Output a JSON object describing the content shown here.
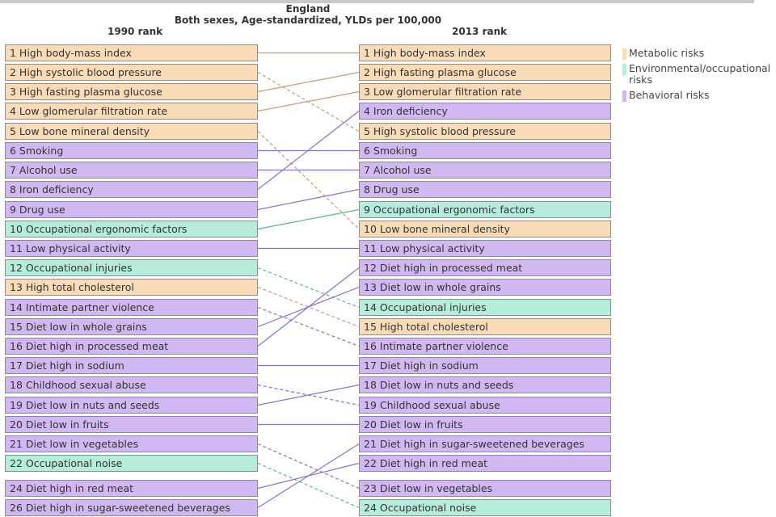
{
  "chart_data": {
    "type": "slopegraph",
    "title_line1": "England",
    "title_line2": "Both sexes, Age-standardized, YLDs per 100,000",
    "left_header": "1990 rank",
    "right_header": "2013 rank",
    "legend": [
      {
        "id": "metabolic",
        "label": "Metabolic risks",
        "color": "#fadbb8"
      },
      {
        "id": "environmental",
        "label": "Environmental/occupational risks",
        "color": "#b5ecdc"
      },
      {
        "id": "behavioral",
        "label": "Behavioral risks",
        "color": "#d2b8f3"
      }
    ],
    "rank_1990": [
      {
        "rank": 1,
        "label": "1 High body-mass index",
        "category": "metabolic"
      },
      {
        "rank": 2,
        "label": "2 High systolic blood pressure",
        "category": "metabolic"
      },
      {
        "rank": 3,
        "label": "3 High fasting plasma glucose",
        "category": "metabolic"
      },
      {
        "rank": 4,
        "label": "4 Low glomerular filtration rate",
        "category": "metabolic"
      },
      {
        "rank": 5,
        "label": "5 Low bone mineral density",
        "category": "metabolic"
      },
      {
        "rank": 6,
        "label": "6 Smoking",
        "category": "behavioral"
      },
      {
        "rank": 7,
        "label": "7 Alcohol use",
        "category": "behavioral"
      },
      {
        "rank": 8,
        "label": "8 Iron deficiency",
        "category": "behavioral"
      },
      {
        "rank": 9,
        "label": "9 Drug use",
        "category": "behavioral"
      },
      {
        "rank": 10,
        "label": "10 Occupational ergonomic factors",
        "category": "environmental"
      },
      {
        "rank": 11,
        "label": "11 Low physical activity",
        "category": "behavioral"
      },
      {
        "rank": 12,
        "label": "12 Occupational injuries",
        "category": "environmental"
      },
      {
        "rank": 13,
        "label": "13 High total cholesterol",
        "category": "metabolic"
      },
      {
        "rank": 14,
        "label": "14 Intimate partner violence",
        "category": "behavioral"
      },
      {
        "rank": 15,
        "label": "15 Diet low in whole grains",
        "category": "behavioral"
      },
      {
        "rank": 16,
        "label": "16 Diet high in processed meat",
        "category": "behavioral"
      },
      {
        "rank": 17,
        "label": "17 Diet high in sodium",
        "category": "behavioral"
      },
      {
        "rank": 18,
        "label": "18 Childhood sexual abuse",
        "category": "behavioral"
      },
      {
        "rank": 19,
        "label": "19 Diet low in nuts and seeds",
        "category": "behavioral"
      },
      {
        "rank": 20,
        "label": "20 Diet low in fruits",
        "category": "behavioral"
      },
      {
        "rank": 21,
        "label": "21 Diet low in vegetables",
        "category": "behavioral"
      },
      {
        "rank": 22,
        "label": "22 Occupational noise",
        "category": "environmental"
      },
      {
        "rank": 24,
        "label": "24 Diet high in red meat",
        "category": "behavioral"
      },
      {
        "rank": 26,
        "label": "26 Diet high in sugar-sweetened beverages",
        "category": "behavioral"
      }
    ],
    "rank_2013": [
      {
        "rank": 1,
        "label": "1 High body-mass index",
        "category": "metabolic"
      },
      {
        "rank": 2,
        "label": "2 High fasting plasma glucose",
        "category": "metabolic"
      },
      {
        "rank": 3,
        "label": "3 Low glomerular filtration rate",
        "category": "metabolic"
      },
      {
        "rank": 4,
        "label": "4 Iron deficiency",
        "category": "behavioral"
      },
      {
        "rank": 5,
        "label": "5 High systolic blood pressure",
        "category": "metabolic"
      },
      {
        "rank": 6,
        "label": "6 Smoking",
        "category": "behavioral"
      },
      {
        "rank": 7,
        "label": "7 Alcohol use",
        "category": "behavioral"
      },
      {
        "rank": 8,
        "label": "8 Drug use",
        "category": "behavioral"
      },
      {
        "rank": 9,
        "label": "9 Occupational ergonomic factors",
        "category": "environmental"
      },
      {
        "rank": 10,
        "label": "10 Low bone mineral density",
        "category": "metabolic"
      },
      {
        "rank": 11,
        "label": "11 Low physical activity",
        "category": "behavioral"
      },
      {
        "rank": 12,
        "label": "12 Diet high in processed meat",
        "category": "behavioral"
      },
      {
        "rank": 13,
        "label": "13 Diet low in whole grains",
        "category": "behavioral"
      },
      {
        "rank": 14,
        "label": "14 Occupational injuries",
        "category": "environmental"
      },
      {
        "rank": 15,
        "label": "15 High total cholesterol",
        "category": "metabolic"
      },
      {
        "rank": 16,
        "label": "16 Intimate partner violence",
        "category": "behavioral"
      },
      {
        "rank": 17,
        "label": "17 Diet high in sodium",
        "category": "behavioral"
      },
      {
        "rank": 18,
        "label": "18 Diet low in nuts and seeds",
        "category": "behavioral"
      },
      {
        "rank": 19,
        "label": "19 Childhood sexual abuse",
        "category": "behavioral"
      },
      {
        "rank": 20,
        "label": "20 Diet low in fruits",
        "category": "behavioral"
      },
      {
        "rank": 21,
        "label": "21 Diet high in sugar-sweetened beverages",
        "category": "behavioral"
      },
      {
        "rank": 22,
        "label": "22 Diet high in red meat",
        "category": "behavioral"
      },
      {
        "rank": 23,
        "label": "23 Diet low in vegetables",
        "category": "behavioral"
      },
      {
        "rank": 24,
        "label": "24 Occupational noise",
        "category": "environmental"
      }
    ],
    "links": [
      {
        "from": 0,
        "to": 0,
        "style": "solid"
      },
      {
        "from": 1,
        "to": 4,
        "style": "dashed"
      },
      {
        "from": 2,
        "to": 1,
        "style": "solid"
      },
      {
        "from": 3,
        "to": 2,
        "style": "solid"
      },
      {
        "from": 4,
        "to": 9,
        "style": "dashed"
      },
      {
        "from": 5,
        "to": 5,
        "style": "solid"
      },
      {
        "from": 6,
        "to": 6,
        "style": "solid"
      },
      {
        "from": 7,
        "to": 3,
        "style": "solid"
      },
      {
        "from": 8,
        "to": 7,
        "style": "solid"
      },
      {
        "from": 9,
        "to": 8,
        "style": "solid"
      },
      {
        "from": 10,
        "to": 10,
        "style": "solid"
      },
      {
        "from": 11,
        "to": 13,
        "style": "dashed"
      },
      {
        "from": 12,
        "to": 14,
        "style": "dashed"
      },
      {
        "from": 13,
        "to": 15,
        "style": "dashed"
      },
      {
        "from": 14,
        "to": 12,
        "style": "solid"
      },
      {
        "from": 15,
        "to": 11,
        "style": "solid"
      },
      {
        "from": 16,
        "to": 16,
        "style": "solid"
      },
      {
        "from": 17,
        "to": 18,
        "style": "dashed"
      },
      {
        "from": 18,
        "to": 17,
        "style": "solid"
      },
      {
        "from": 19,
        "to": 19,
        "style": "solid"
      },
      {
        "from": 20,
        "to": 22,
        "style": "dashed"
      },
      {
        "from": 21,
        "to": 23,
        "style": "dashed"
      },
      {
        "from": 22,
        "to": 21,
        "style": "solid"
      },
      {
        "from": 23,
        "to": 20,
        "style": "solid"
      }
    ]
  }
}
